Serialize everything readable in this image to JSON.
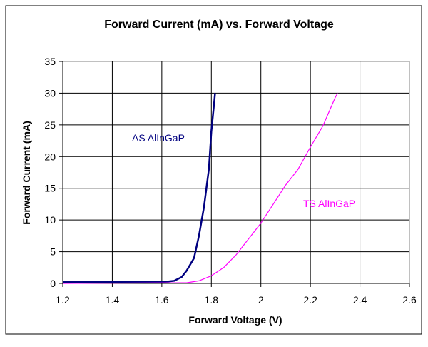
{
  "chart_data": {
    "type": "line",
    "title": "Forward Current (mA) vs. Forward Voltage",
    "xlabel": "Forward Voltage (V)",
    "ylabel": "Forward Current (mA)",
    "xlim": [
      1.2,
      2.6
    ],
    "ylim": [
      0,
      35
    ],
    "xticks": [
      "1.2",
      "1.4",
      "1.6",
      "1.8",
      "2",
      "2.2",
      "2.4",
      "2.6"
    ],
    "yticks": [
      "0",
      "5",
      "10",
      "15",
      "20",
      "25",
      "30",
      "35"
    ],
    "grid": true,
    "series": [
      {
        "name": "AS AlInGaP",
        "color": "#000080",
        "points": [
          [
            1.2,
            0.2
          ],
          [
            1.6,
            0.2
          ],
          [
            1.65,
            0.4
          ],
          [
            1.68,
            1.0
          ],
          [
            1.7,
            2.0
          ],
          [
            1.73,
            4.0
          ],
          [
            1.75,
            7.5
          ],
          [
            1.77,
            12.0
          ],
          [
            1.79,
            18.0
          ],
          [
            1.8,
            24.0
          ],
          [
            1.81,
            28.0
          ],
          [
            1.815,
            30.0
          ]
        ]
      },
      {
        "name": "TS AlInGaP",
        "color": "#FF00FF",
        "points": [
          [
            1.2,
            0.0
          ],
          [
            1.7,
            0.1
          ],
          [
            1.75,
            0.4
          ],
          [
            1.8,
            1.2
          ],
          [
            1.85,
            2.5
          ],
          [
            1.9,
            4.5
          ],
          [
            1.95,
            7.0
          ],
          [
            2.0,
            9.5
          ],
          [
            2.05,
            12.5
          ],
          [
            2.1,
            15.5
          ],
          [
            2.15,
            18.0
          ],
          [
            2.2,
            21.5
          ],
          [
            2.25,
            24.8
          ],
          [
            2.3,
            29.3
          ],
          [
            2.31,
            30.0
          ]
        ]
      }
    ]
  }
}
